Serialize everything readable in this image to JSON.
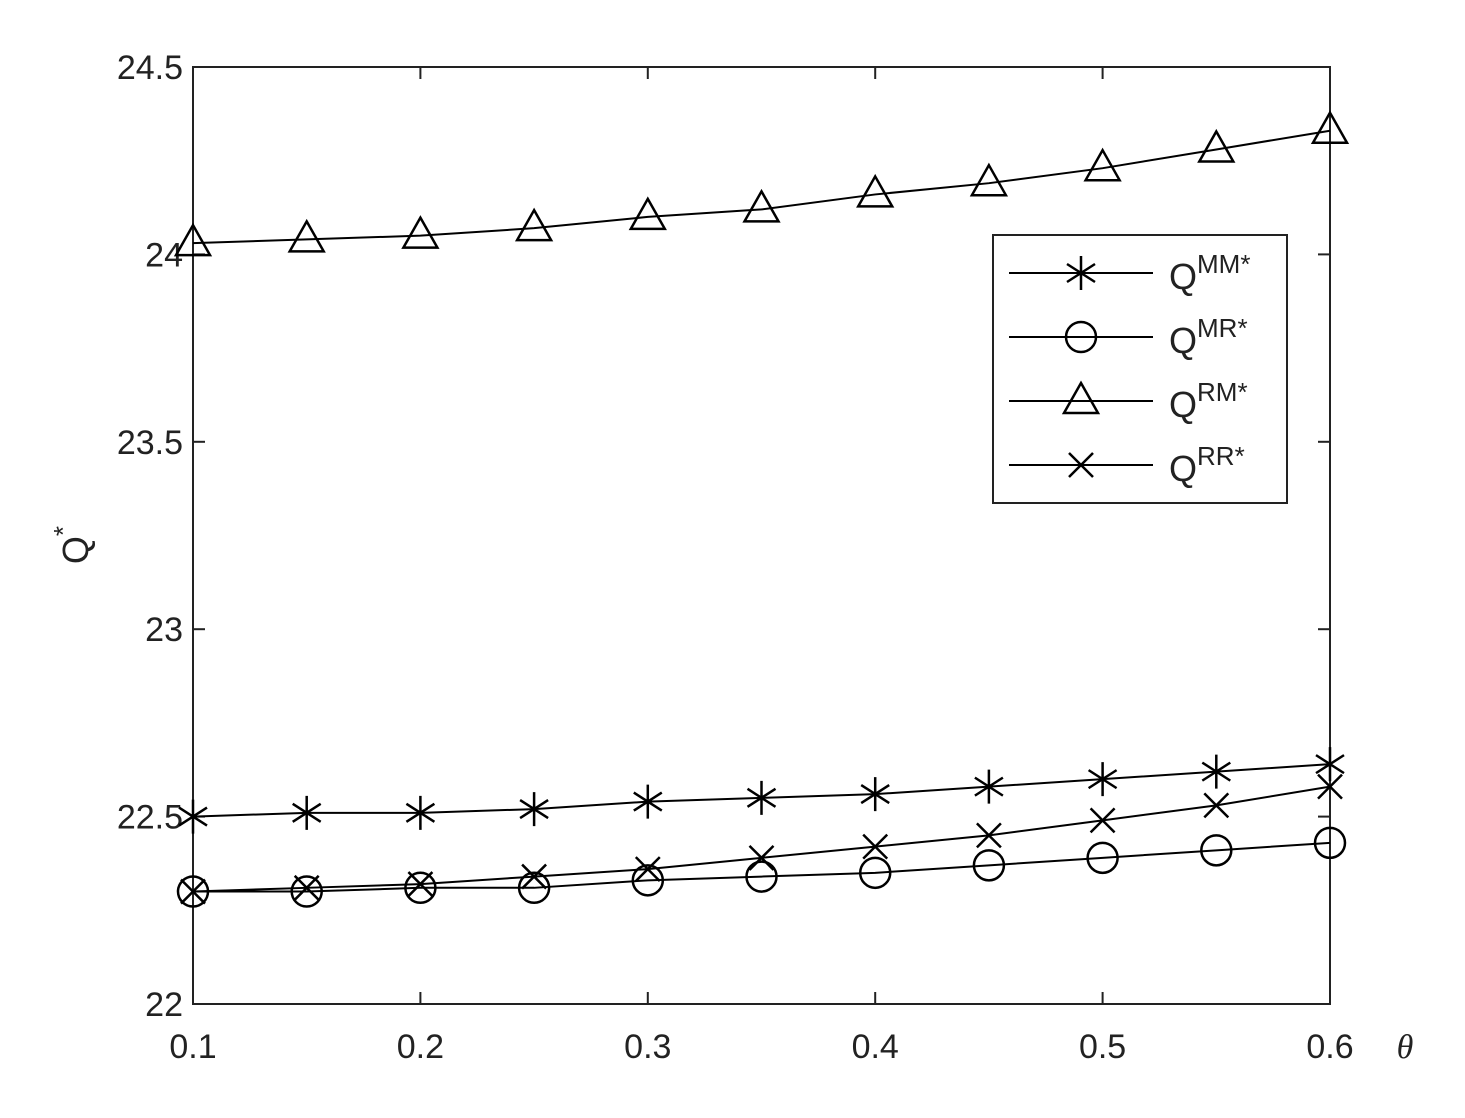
{
  "chart_data": {
    "type": "line",
    "x_label": "θ",
    "y_label": "Q*",
    "x": [
      0.1,
      0.15,
      0.2,
      0.25,
      0.3,
      0.35,
      0.4,
      0.45,
      0.5,
      0.55,
      0.6
    ],
    "series": [
      {
        "name": "QMM*",
        "color": "#000000",
        "marker": "star",
        "values": [
          22.5,
          22.51,
          22.51,
          22.52,
          22.54,
          22.55,
          22.56,
          22.58,
          22.6,
          22.62,
          22.64
        ]
      },
      {
        "name": "QMR*",
        "color": "#000000",
        "marker": "circle",
        "values": [
          22.3,
          22.3,
          22.31,
          22.31,
          22.33,
          22.34,
          22.35,
          22.37,
          22.39,
          22.41,
          22.43
        ]
      },
      {
        "name": "QRM*",
        "color": "#000000",
        "marker": "triangle",
        "values": [
          24.03,
          24.04,
          24.05,
          24.07,
          24.1,
          24.12,
          24.16,
          24.19,
          24.23,
          24.28,
          24.33
        ]
      },
      {
        "name": "QRR*",
        "color": "#000000",
        "marker": "x",
        "values": [
          22.3,
          22.31,
          22.32,
          22.34,
          22.36,
          22.39,
          22.42,
          22.45,
          22.49,
          22.53,
          22.58
        ]
      }
    ],
    "xlim": [
      0.1,
      0.6
    ],
    "xticks": [
      0.1,
      0.2,
      0.3,
      0.4,
      0.5,
      0.6
    ],
    "ylim": [
      22,
      24.5
    ],
    "yticks": [
      22,
      22.5,
      23,
      23.5,
      24,
      24.5
    ],
    "grid": false,
    "legend": "upper right"
  }
}
